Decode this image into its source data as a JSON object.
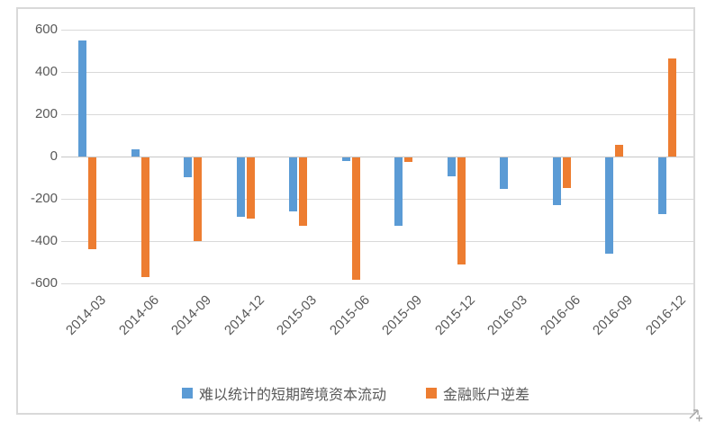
{
  "chart_data": {
    "type": "bar",
    "title": "",
    "xlabel": "",
    "ylabel": "",
    "categories": [
      "2014-03",
      "2014-06",
      "2014-09",
      "2014-12",
      "2015-03",
      "2015-06",
      "2015-09",
      "2015-12",
      "2016-03",
      "2016-06",
      "2016-09",
      "2016-12"
    ],
    "series": [
      {
        "name": "难以统计的短期跨境资本流动",
        "color": "#5B9BD5",
        "values": [
          550,
          35,
          -95,
          -280,
          -255,
          -15,
          -325,
          -90,
          -150,
          -225,
          -455,
          -270
        ]
      },
      {
        "name": "金融账户逆差",
        "color": "#ED7D31",
        "values": [
          -435,
          -565,
          -395,
          -290,
          -325,
          -580,
          -20,
          -505,
          0,
          -145,
          55,
          465
        ]
      }
    ],
    "ylim": [
      -600,
      600
    ],
    "yticks": [
      600,
      400,
      200,
      0,
      -200,
      -400,
      -600
    ],
    "grid": true,
    "legend_position": "bottom"
  },
  "style": {
    "frame_border_color": "#D9D9D9",
    "gridline_color": "#D9D9D9",
    "text_color": "#595959",
    "background": "#ffffff"
  },
  "artifacts": {
    "cursor_color": "#A6A6A6"
  }
}
